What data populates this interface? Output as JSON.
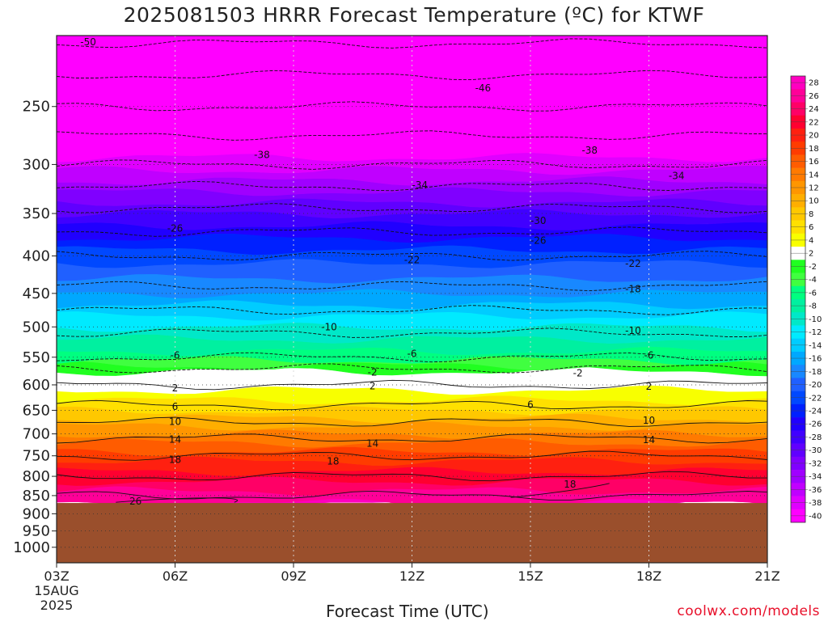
{
  "chart_data": {
    "type": "heatmap",
    "title": "2025081503 HRRR Forecast Temperature (ºC) for KTWF",
    "xlabel": "Forecast Time (UTC)",
    "x_ticks": [
      "03Z",
      "06Z",
      "09Z",
      "12Z",
      "15Z",
      "18Z",
      "21Z"
    ],
    "x_date_line1": "15AUG",
    "x_date_line2": "2025",
    "y_ticks": [
      250,
      300,
      350,
      400,
      450,
      500,
      550,
      600,
      650,
      700,
      750,
      800,
      850,
      900,
      950,
      1000
    ],
    "ylim": [
      1050,
      200
    ],
    "y_scale": "log",
    "ground_level_hPa": 870,
    "colorbar": {
      "levels": [
        28,
        26,
        24,
        22,
        20,
        18,
        16,
        14,
        12,
        10,
        8,
        6,
        4,
        2,
        -2,
        -4,
        -6,
        -8,
        -10,
        -12,
        -14,
        -16,
        -18,
        -20,
        -22,
        -24,
        -26,
        -28,
        -30,
        -32,
        -34,
        -36,
        -38,
        -40
      ],
      "colors": [
        "#ff00c0",
        "#ff0098",
        "#ff0066",
        "#ff0030",
        "#ff2010",
        "#ff3c00",
        "#ff5c00",
        "#ff7a00",
        "#ff9600",
        "#ffae00",
        "#ffc800",
        "#ffe000",
        "#f8ff00",
        "#ffffff",
        "#20ff20",
        "#40ff40",
        "#00ff80",
        "#00f0a0",
        "#00e8c8",
        "#00eaff",
        "#00ccff",
        "#00a8ff",
        "#1888ff",
        "#2060ff",
        "#0048ff",
        "#0020ff",
        "#2000ff",
        "#4000ff",
        "#6000ff",
        "#8000ff",
        "#a000ff",
        "#c000ff",
        "#e000ff",
        "#ff00ff"
      ]
    },
    "profile_times": [
      "03Z",
      "21Z"
    ],
    "temperature_profile": [
      {
        "p": 200,
        "t": -55
      },
      {
        "p": 250,
        "t": -46
      },
      {
        "p": 300,
        "t": -38
      },
      {
        "p": 350,
        "t": -29
      },
      {
        "p": 400,
        "t": -22
      },
      {
        "p": 450,
        "t": -17
      },
      {
        "p": 500,
        "t": -11
      },
      {
        "p": 550,
        "t": -6
      },
      {
        "p": 580,
        "t": 0
      },
      {
        "p": 600,
        "t": 2
      },
      {
        "p": 650,
        "t": 7
      },
      {
        "p": 700,
        "t": 13
      },
      {
        "p": 750,
        "t": 18
      },
      {
        "p": 800,
        "t": 22
      },
      {
        "p": 850,
        "t": 26
      },
      {
        "p": 870,
        "t": 27
      }
    ],
    "contour_labels": [
      {
        "text": "-50",
        "x": 3.8,
        "p": 204
      },
      {
        "text": "-46",
        "x": 13.8,
        "p": 236
      },
      {
        "text": "-38",
        "x": 8.2,
        "p": 291
      },
      {
        "text": "-38",
        "x": 16.5,
        "p": 287
      },
      {
        "text": "-34",
        "x": 12.2,
        "p": 320
      },
      {
        "text": "-34",
        "x": 18.7,
        "p": 311
      },
      {
        "text": "-30",
        "x": 15.2,
        "p": 358
      },
      {
        "text": "-26",
        "x": 6.0,
        "p": 367
      },
      {
        "text": "-26",
        "x": 15.2,
        "p": 381
      },
      {
        "text": "-22",
        "x": 12.0,
        "p": 405
      },
      {
        "text": "-22",
        "x": 17.6,
        "p": 410
      },
      {
        "text": "-18",
        "x": 17.6,
        "p": 444
      },
      {
        "text": "-10",
        "x": 9.9,
        "p": 500
      },
      {
        "text": "-10",
        "x": 17.6,
        "p": 506
      },
      {
        "text": "-6",
        "x": 6.0,
        "p": 547
      },
      {
        "text": "-6",
        "x": 12.0,
        "p": 544
      },
      {
        "text": "-6",
        "x": 18.0,
        "p": 547
      },
      {
        "text": "-2",
        "x": 11.0,
        "p": 577
      },
      {
        "text": "-2",
        "x": 16.2,
        "p": 578
      },
      {
        "text": "2",
        "x": 6.0,
        "p": 606
      },
      {
        "text": "2",
        "x": 11.0,
        "p": 602
      },
      {
        "text": "2",
        "x": 18.0,
        "p": 603
      },
      {
        "text": "6",
        "x": 6.0,
        "p": 643
      },
      {
        "text": "6",
        "x": 15.0,
        "p": 639
      },
      {
        "text": "10",
        "x": 6.0,
        "p": 674
      },
      {
        "text": "10",
        "x": 18.0,
        "p": 671
      },
      {
        "text": "14",
        "x": 6.0,
        "p": 712
      },
      {
        "text": "14",
        "x": 11.0,
        "p": 722
      },
      {
        "text": "14",
        "x": 18.0,
        "p": 713
      },
      {
        "text": "18",
        "x": 6.0,
        "p": 759
      },
      {
        "text": "18",
        "x": 10.0,
        "p": 763
      },
      {
        "text": "18",
        "x": 16.0,
        "p": 820
      },
      {
        "text": "26",
        "x": 5.0,
        "p": 865
      }
    ],
    "grid": true
  },
  "credit": "coolwx.com/models"
}
